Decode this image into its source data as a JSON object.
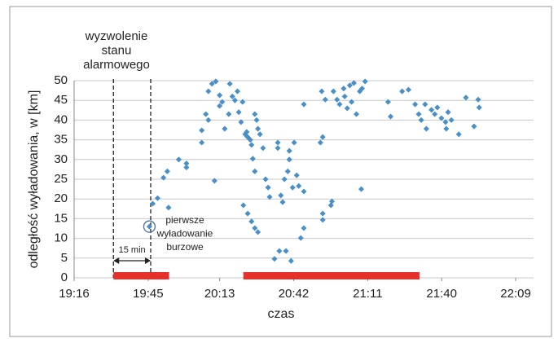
{
  "chart_data": {
    "type": "scatter",
    "xlabel": "czas",
    "ylabel": "odległość wyładowania, w [km]",
    "xlim": [
      1156,
      1336
    ],
    "ylim": [
      0,
      50
    ],
    "xticks": [
      {
        "value": 1156,
        "label": "19:16"
      },
      {
        "value": 1185,
        "label": "19:45"
      },
      {
        "value": 1213,
        "label": "20:13"
      },
      {
        "value": 1242,
        "label": "20:42"
      },
      {
        "value": 1271,
        "label": "21:11"
      },
      {
        "value": 1300,
        "label": "21:40"
      },
      {
        "value": 1329,
        "label": "22:09"
      }
    ],
    "yticks": [
      0,
      5,
      10,
      15,
      20,
      25,
      30,
      35,
      40,
      45,
      50
    ],
    "grid": true,
    "series": [
      {
        "color": "#4a90c8",
        "x": [
          1185.5,
          1186.8,
          1188.7,
          1191,
          1192.5,
          1193,
          1197,
          1200,
          1200,
          1206,
          1206,
          1207.6,
          1208.6,
          1208.6,
          1210,
          1211.5,
          1211,
          1213,
          1213,
          1214,
          1215,
          1216.6,
          1217,
          1218,
          1219,
          1220,
          1220.5,
          1221.4,
          1222,
          1223,
          1223.6,
          1224,
          1225,
          1225.5,
          1222.3,
          1224,
          1225.5,
          1226.8,
          1228,
          1226,
          1226.8,
          1226.8,
          1227.5,
          1228,
          1228.8,
          1230,
          1231,
          1232,
          1232.6,
          1234.5,
          1235.8,
          1235.8,
          1236.4,
          1237,
          1237.7,
          1238.4,
          1239,
          1239.7,
          1240.3,
          1240.3,
          1241,
          1241.6,
          1242.2,
          1243.2,
          1244,
          1246,
          1244.8,
          1246,
          1246,
          1252.5,
          1253.4,
          1253,
          1253.4,
          1253.4,
          1254.4,
          1256.6,
          1257,
          1257.6,
          1259,
          1260,
          1261.6,
          1262,
          1263,
          1264,
          1264.7,
          1265.6,
          1266.6,
          1267.9,
          1268.8,
          1270,
          1268.5,
          1279,
          1280,
          1284.5,
          1287,
          1289.6,
          1291,
          1292,
          1293.5,
          1294,
          1296,
          1297.3,
          1298.3,
          1299.9,
          1301.5,
          1302.5,
          1303.8,
          1301.8,
          1306.7,
          1309.5,
          1312.7,
          1314.3,
          1314.7
        ],
        "values": [
          13,
          18.8,
          20.2,
          25.4,
          27,
          17.8,
          30,
          28,
          29,
          37.4,
          34.3,
          41.5,
          40,
          47.3,
          49.2,
          49.8,
          24.6,
          46.3,
          43.6,
          44.6,
          37.8,
          41.5,
          49.2,
          46,
          45,
          47.3,
          42,
          39.5,
          44.6,
          36.4,
          37,
          35.7,
          35,
          33.7,
          18.4,
          16.3,
          14.3,
          12.6,
          11.6,
          30.2,
          27,
          41.5,
          40,
          37.8,
          36.4,
          32.9,
          25,
          22.9,
          20.5,
          4.8,
          34.3,
          32.9,
          6.8,
          20.9,
          19.2,
          25,
          6.8,
          27,
          30,
          32.2,
          4.3,
          22.9,
          34.3,
          26,
          23.3,
          21.9,
          10.1,
          12.6,
          44,
          34.3,
          35.7,
          47.3,
          14.7,
          16.3,
          45.2,
          18.4,
          19.4,
          47.3,
          45.2,
          44,
          48,
          46,
          43,
          48.8,
          44.6,
          49.4,
          41.5,
          47.3,
          48,
          49.8,
          22.5,
          44.6,
          40.9,
          47.3,
          47.7,
          44,
          41.5,
          40,
          44,
          37.8,
          42.6,
          41.5,
          43.2,
          40.5,
          39.5,
          42,
          40,
          37.8,
          36.4,
          45.7,
          38.4,
          45.2,
          43.2
        ]
      }
    ],
    "intervals": [
      {
        "start": 1171.4,
        "end": 1193.2
      },
      {
        "start": 1222.3,
        "end": 1291.3
      }
    ],
    "interval_color": "#e8302a",
    "vlines": [
      1171.4,
      1186
    ],
    "span_label": "15 min",
    "annotations": [
      {
        "lines": [
          "wyzwolenie",
          "stanu",
          "alarmowego"
        ]
      },
      {
        "lines": [
          "pierwsze",
          "wyładowanie",
          "burzowe"
        ]
      }
    ]
  }
}
